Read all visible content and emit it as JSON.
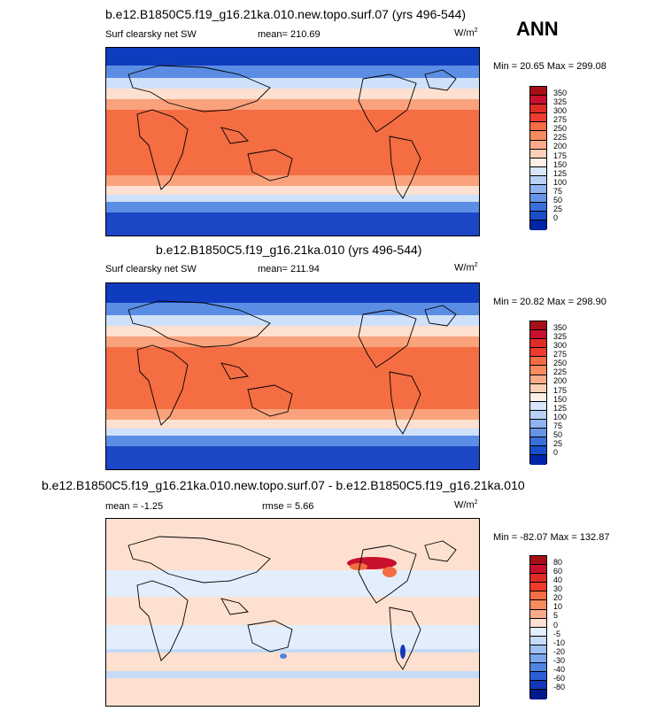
{
  "season": "ANN",
  "panels": [
    {
      "title": "b.e12.B1850C5.f19_g16.21ka.010.new.topo.surf.07 (yrs 496-544)",
      "variable": "Surf clearsky net SW",
      "mean_label": "mean= 210.69",
      "units": "W/m",
      "units_sup": "2",
      "minmax_label": "Min =  20.65 Max = 299.08",
      "colorbar": {
        "ticks": [
          "350",
          "325",
          "300",
          "275",
          "250",
          "225",
          "200",
          "175",
          "150",
          "125",
          "100",
          "75",
          "50",
          "25",
          "0"
        ],
        "colors": [
          "#a50f15",
          "#c8102e",
          "#de2d26",
          "#ef3b2c",
          "#f46d43",
          "#f88b5c",
          "#fcab8a",
          "#fdd0b8",
          "#fdf0e6",
          "#d8e6fb",
          "#b7d1f7",
          "#8fb4ef",
          "#6594e6",
          "#3a6fda",
          "#1a4fc9",
          "#0025a8"
        ]
      }
    },
    {
      "title": "b.e12.B1850C5.f19_g16.21ka.010 (yrs 496-544)",
      "variable": "Surf clearsky net SW",
      "mean_label": "mean= 211.94",
      "units": "W/m",
      "units_sup": "2",
      "minmax_label": "Min =  20.82 Max = 298.90",
      "colorbar": {
        "ticks": [
          "350",
          "325",
          "300",
          "275",
          "250",
          "225",
          "200",
          "175",
          "150",
          "125",
          "100",
          "75",
          "50",
          "25",
          "0"
        ],
        "colors": [
          "#a50f15",
          "#c8102e",
          "#de2d26",
          "#ef3b2c",
          "#f46d43",
          "#f88b5c",
          "#fcab8a",
          "#fdd0b8",
          "#fdf0e6",
          "#d8e6fb",
          "#b7d1f7",
          "#8fb4ef",
          "#6594e6",
          "#3a6fda",
          "#1a4fc9",
          "#0025a8"
        ]
      }
    },
    {
      "title": "b.e12.B1850C5.f19_g16.21ka.010.new.topo.surf.07 - b.e12.B1850C5.f19_g16.21ka.010",
      "mean_label": "mean =  -1.25",
      "rmse_label": "rmse =   5.66",
      "units": "W/m",
      "units_sup": "2",
      "minmax_label": "Min = -82.07 Max = 132.87",
      "colorbar": {
        "ticks": [
          "80",
          "60",
          "40",
          "30",
          "20",
          "10",
          "5",
          "0",
          "-5",
          "-10",
          "-20",
          "-30",
          "-40",
          "-60",
          "-80"
        ],
        "colors": [
          "#a50f15",
          "#c8102e",
          "#de2d26",
          "#ef3b2c",
          "#f46d43",
          "#f88b5c",
          "#fcab8a",
          "#fde0cf",
          "#e3eefc",
          "#c6dbf7",
          "#9fc1f2",
          "#7aa6ec",
          "#4f84e2",
          "#2a5fd5",
          "#1238b8",
          "#001a8c"
        ]
      }
    }
  ],
  "chart_data": [
    {
      "type": "heatmap",
      "title": "b.e12.B1850C5.f19_g16.21ka.010.new.topo.surf.07 (yrs 496-544)",
      "variable": "Surf clearsky net SW",
      "units": "W/m2",
      "mean": 210.69,
      "min": 20.65,
      "max": 299.08,
      "levels": [
        0,
        25,
        50,
        75,
        100,
        125,
        150,
        175,
        200,
        225,
        250,
        275,
        300,
        325,
        350
      ]
    },
    {
      "type": "heatmap",
      "title": "b.e12.B1850C5.f19_g16.21ka.010 (yrs 496-544)",
      "variable": "Surf clearsky net SW",
      "units": "W/m2",
      "mean": 211.94,
      "min": 20.82,
      "max": 298.9,
      "levels": [
        0,
        25,
        50,
        75,
        100,
        125,
        150,
        175,
        200,
        225,
        250,
        275,
        300,
        325,
        350
      ]
    },
    {
      "type": "heatmap",
      "title": "b.e12.B1850C5.f19_g16.21ka.010.new.topo.surf.07 - b.e12.B1850C5.f19_g16.21ka.010",
      "units": "W/m2",
      "mean": -1.25,
      "rmse": 5.66,
      "min": -82.07,
      "max": 132.87,
      "levels": [
        -80,
        -60,
        -40,
        -30,
        -20,
        -10,
        -5,
        0,
        5,
        10,
        20,
        30,
        40,
        60,
        80
      ]
    }
  ]
}
